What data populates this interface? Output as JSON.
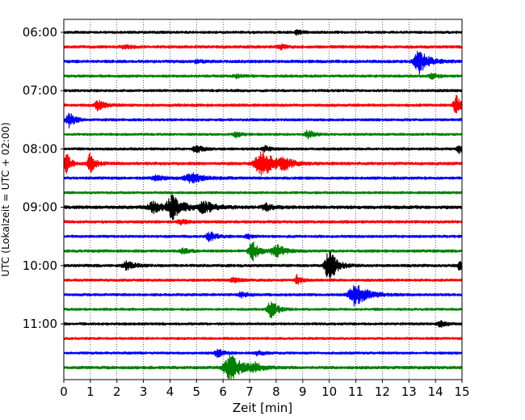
{
  "chart_data": {
    "type": "line",
    "subtype": "helicorder",
    "xlabel": "Zeit  [min]",
    "ylabel": "UTC (Lokalzeit = UTC + 02:00)",
    "xlim": [
      0,
      15
    ],
    "x_ticks": [
      "0",
      "1",
      "2",
      "3",
      "4",
      "5",
      "6",
      "7",
      "8",
      "9",
      "10",
      "11",
      "12",
      "13",
      "14",
      "15"
    ],
    "y_tick_labels": [
      "06:00",
      "07:00",
      "08:00",
      "09:00",
      "10:00",
      "11:00"
    ],
    "grid": {
      "vertical": true,
      "style": "dotted"
    },
    "color_cycle": [
      "#000000",
      "#ff0000",
      "#0000ff",
      "#008000"
    ],
    "traces": [
      {
        "start": "06:00",
        "color": "#000000",
        "base": 1.6,
        "events": [
          {
            "x": 8.8,
            "amp": 2.5,
            "w": 0.25
          }
        ]
      },
      {
        "start": "06:15",
        "color": "#ff0000",
        "base": 1.7,
        "events": [
          {
            "x": 2.3,
            "amp": 2.5,
            "w": 0.3
          },
          {
            "x": 8.2,
            "amp": 2.5,
            "w": 0.3
          }
        ]
      },
      {
        "start": "06:30",
        "color": "#0000ff",
        "base": 1.8,
        "events": [
          {
            "x": 13.4,
            "amp": 14,
            "w": 0.45
          },
          {
            "x": 5.0,
            "amp": 2,
            "w": 0.3
          }
        ]
      },
      {
        "start": "06:45",
        "color": "#008000",
        "base": 1.6,
        "events": [
          {
            "x": 13.9,
            "amp": 3,
            "w": 0.3
          },
          {
            "x": 6.5,
            "amp": 2,
            "w": 0.3
          }
        ]
      },
      {
        "start": "07:00",
        "color": "#000000",
        "base": 1.6,
        "events": []
      },
      {
        "start": "07:15",
        "color": "#ff0000",
        "base": 1.7,
        "events": [
          {
            "x": 1.3,
            "amp": 6,
            "w": 0.3
          },
          {
            "x": 14.8,
            "amp": 12,
            "w": 0.3
          }
        ]
      },
      {
        "start": "07:30",
        "color": "#0000ff",
        "base": 1.6,
        "events": [
          {
            "x": 0.2,
            "amp": 9,
            "w": 0.3
          }
        ]
      },
      {
        "start": "07:45",
        "color": "#008000",
        "base": 1.5,
        "events": [
          {
            "x": 6.5,
            "amp": 3,
            "w": 0.25
          },
          {
            "x": 9.2,
            "amp": 5,
            "w": 0.3
          }
        ]
      },
      {
        "start": "08:00",
        "color": "#000000",
        "base": 1.6,
        "events": [
          {
            "x": 5.0,
            "amp": 5,
            "w": 0.3
          },
          {
            "x": 7.6,
            "amp": 3,
            "w": 0.25
          },
          {
            "x": 14.9,
            "amp": 5,
            "w": 0.2
          }
        ]
      },
      {
        "start": "08:15",
        "color": "#ff0000",
        "base": 1.8,
        "events": [
          {
            "x": 0.1,
            "amp": 14,
            "w": 0.2
          },
          {
            "x": 1.0,
            "amp": 12,
            "w": 0.25
          },
          {
            "x": 7.5,
            "amp": 15,
            "w": 0.7
          },
          {
            "x": 8.3,
            "amp": 7,
            "w": 0.3
          }
        ]
      },
      {
        "start": "08:30",
        "color": "#0000ff",
        "base": 1.7,
        "events": [
          {
            "x": 4.8,
            "amp": 6,
            "w": 0.6
          },
          {
            "x": 3.5,
            "amp": 3,
            "w": 0.4
          }
        ]
      },
      {
        "start": "08:45",
        "color": "#008000",
        "base": 1.5,
        "events": []
      },
      {
        "start": "09:00",
        "color": "#000000",
        "base": 2.0,
        "events": [
          {
            "x": 3.4,
            "amp": 6,
            "w": 0.5
          },
          {
            "x": 4.1,
            "amp": 14,
            "w": 0.5
          },
          {
            "x": 5.3,
            "amp": 7,
            "w": 0.5
          },
          {
            "x": 7.6,
            "amp": 5,
            "w": 0.3
          }
        ]
      },
      {
        "start": "09:15",
        "color": "#ff0000",
        "base": 1.7,
        "events": [
          {
            "x": 4.4,
            "amp": 3,
            "w": 0.3
          }
        ]
      },
      {
        "start": "09:30",
        "color": "#0000ff",
        "base": 1.6,
        "events": [
          {
            "x": 5.5,
            "amp": 6,
            "w": 0.3
          },
          {
            "x": 6.9,
            "amp": 4,
            "w": 0.2
          }
        ]
      },
      {
        "start": "09:45",
        "color": "#008000",
        "base": 1.7,
        "events": [
          {
            "x": 7.1,
            "amp": 13,
            "w": 0.3
          },
          {
            "x": 8.0,
            "amp": 8,
            "w": 0.4
          },
          {
            "x": 4.5,
            "amp": 3,
            "w": 0.3
          }
        ]
      },
      {
        "start": "10:00",
        "color": "#000000",
        "base": 1.7,
        "events": [
          {
            "x": 2.4,
            "amp": 5,
            "w": 0.4
          },
          {
            "x": 10.0,
            "amp": 22,
            "w": 0.35
          },
          {
            "x": 14.9,
            "amp": 6,
            "w": 0.15
          }
        ]
      },
      {
        "start": "10:15",
        "color": "#ff0000",
        "base": 1.6,
        "events": [
          {
            "x": 8.8,
            "amp": 6,
            "w": 0.2
          },
          {
            "x": 6.4,
            "amp": 3,
            "w": 0.3
          }
        ]
      },
      {
        "start": "10:30",
        "color": "#0000ff",
        "base": 1.6,
        "events": [
          {
            "x": 11.0,
            "amp": 14,
            "w": 0.6
          },
          {
            "x": 6.7,
            "amp": 3,
            "w": 0.3
          }
        ]
      },
      {
        "start": "10:45",
        "color": "#008000",
        "base": 1.5,
        "events": [
          {
            "x": 7.8,
            "amp": 12,
            "w": 0.3
          }
        ]
      },
      {
        "start": "11:00",
        "color": "#000000",
        "base": 1.5,
        "events": [
          {
            "x": 14.2,
            "amp": 4,
            "w": 0.3
          }
        ]
      },
      {
        "start": "11:15",
        "color": "#ff0000",
        "base": 1.5,
        "events": []
      },
      {
        "start": "11:30",
        "color": "#0000ff",
        "base": 1.5,
        "events": [
          {
            "x": 5.8,
            "amp": 5,
            "w": 0.3
          },
          {
            "x": 7.3,
            "amp": 3,
            "w": 0.3
          }
        ]
      },
      {
        "start": "11:45",
        "color": "#008000",
        "base": 1.8,
        "events": [
          {
            "x": 6.3,
            "amp": 16,
            "w": 0.6
          },
          {
            "x": 7.2,
            "amp": 5,
            "w": 0.3
          }
        ]
      }
    ]
  }
}
